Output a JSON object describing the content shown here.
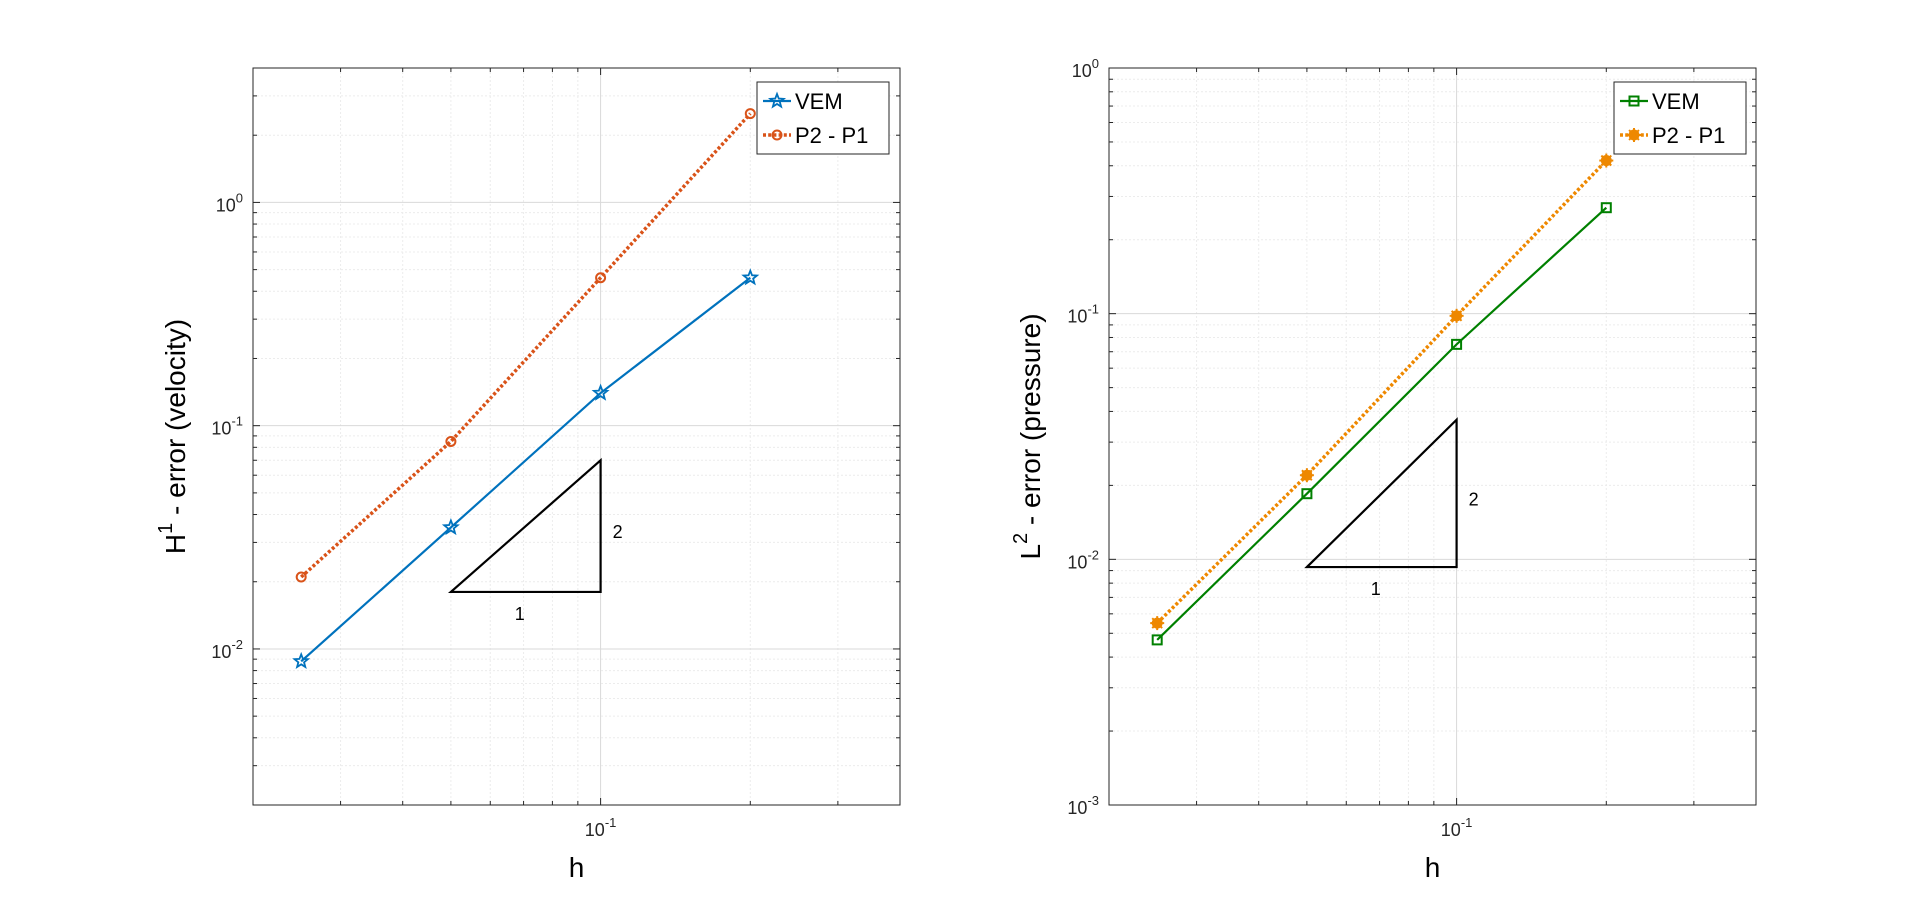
{
  "chart_data": [
    {
      "type": "line",
      "log_x": true,
      "log_y": true,
      "xlabel": "h",
      "ylabel_main": "H",
      "ylabel_sup": "1",
      "ylabel_rest": " - error (velocity)",
      "xlim": [
        0.02,
        0.4
      ],
      "ylim": [
        0.002,
        4
      ],
      "grid": true,
      "legend_position": "top-right",
      "x_ticks": [
        {
          "value": 0.1,
          "base": "10",
          "exp": "-1"
        }
      ],
      "y_ticks": [
        {
          "value": 0.01,
          "base": "10",
          "exp": "-2"
        },
        {
          "value": 0.1,
          "base": "10",
          "exp": "-1"
        },
        {
          "value": 1,
          "base": "10",
          "exp": "0"
        }
      ],
      "series": [
        {
          "name": "VEM",
          "color": "#0072BD",
          "dash": "solid",
          "marker": "star",
          "x": [
            0.025,
            0.05,
            0.1,
            0.2
          ],
          "y": [
            0.0088,
            0.035,
            0.14,
            0.46
          ]
        },
        {
          "name": "P2 - P1",
          "color": "#D95319",
          "dash": "dotted",
          "marker": "circle",
          "x": [
            0.025,
            0.05,
            0.1,
            0.2
          ],
          "y": [
            0.021,
            0.085,
            0.46,
            2.5
          ]
        }
      ],
      "slope_triangle": {
        "x0": 0.05,
        "x1": 0.1,
        "y0": 0.018,
        "y1": 0.07,
        "run_label": "1",
        "rise_label": "2"
      }
    },
    {
      "type": "line",
      "log_x": true,
      "log_y": true,
      "xlabel": "h",
      "ylabel_main": "L",
      "ylabel_sup": "2",
      "ylabel_rest": " - error (pressure)",
      "xlim": [
        0.02,
        0.4
      ],
      "ylim": [
        0.001,
        1
      ],
      "grid": true,
      "legend_position": "top-right",
      "x_ticks": [
        {
          "value": 0.1,
          "base": "10",
          "exp": "-1"
        }
      ],
      "y_ticks": [
        {
          "value": 0.001,
          "base": "10",
          "exp": "-3"
        },
        {
          "value": 0.01,
          "base": "10",
          "exp": "-2"
        },
        {
          "value": 0.1,
          "base": "10",
          "exp": "-1"
        },
        {
          "value": 1,
          "base": "10",
          "exp": "0"
        }
      ],
      "series": [
        {
          "name": "VEM",
          "color": "#008000",
          "dash": "solid",
          "marker": "square",
          "x": [
            0.025,
            0.05,
            0.1,
            0.2
          ],
          "y": [
            0.0047,
            0.0185,
            0.075,
            0.27
          ]
        },
        {
          "name": "P2 - P1",
          "color": "#EE8800",
          "dash": "dotted",
          "marker": "asterisk",
          "x": [
            0.025,
            0.05,
            0.1,
            0.2
          ],
          "y": [
            0.0055,
            0.022,
            0.098,
            0.42
          ]
        }
      ],
      "slope_triangle": {
        "x0": 0.05,
        "x1": 0.1,
        "y0": 0.0093,
        "y1": 0.037,
        "run_label": "1",
        "rise_label": "2"
      }
    }
  ]
}
